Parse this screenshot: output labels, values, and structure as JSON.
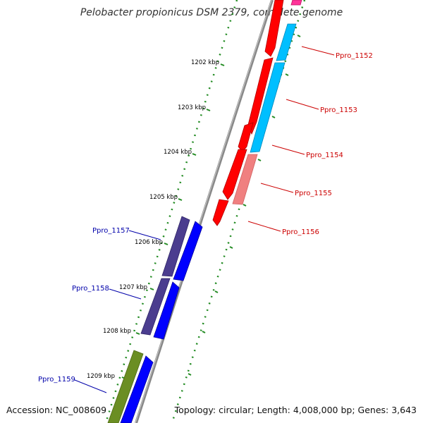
{
  "header": {
    "title": "Pelobacter propionicus DSM 2379, complete genome"
  },
  "footer": {
    "accession": "Accession: NC_008609",
    "summary": "Topology: circular; Length: 4,008,000 bp; Genes: 3,643"
  },
  "ticks": [
    {
      "label": "1202 kbp"
    },
    {
      "label": "1203 kbp"
    },
    {
      "label": "1204 kbp"
    },
    {
      "label": "1205 kbp"
    },
    {
      "label": "1206 kbp"
    },
    {
      "label": "1207 kbp"
    },
    {
      "label": "1208 kbp"
    },
    {
      "label": "1209 kbp"
    }
  ],
  "genes_right": [
    {
      "label": "Ppro_1152",
      "color": "#cc0000"
    },
    {
      "label": "Ppro_1153",
      "color": "#cc0000"
    },
    {
      "label": "Ppro_1154",
      "color": "#cc0000"
    },
    {
      "label": "Ppro_1155",
      "color": "#cc0000"
    },
    {
      "label": "Ppro_1156",
      "color": "#cc0000"
    }
  ],
  "genes_left": [
    {
      "label": "Ppro_1157",
      "color": "#0000aa"
    },
    {
      "label": "Ppro_1158",
      "color": "#0000aa"
    },
    {
      "label": "Ppro_1159",
      "color": "#0000aa"
    }
  ],
  "colors": {
    "backbone": "#888888",
    "forward_cds": "#ff0000",
    "reverse_cds": "#0000ff",
    "cyan_feature": "#00bfff",
    "pink_feature": "#f08080",
    "magenta_feature": "#ff3399",
    "purple_feature": "#4b3d8f",
    "green_feature": "#6b8e23",
    "tick": "#228b22"
  }
}
